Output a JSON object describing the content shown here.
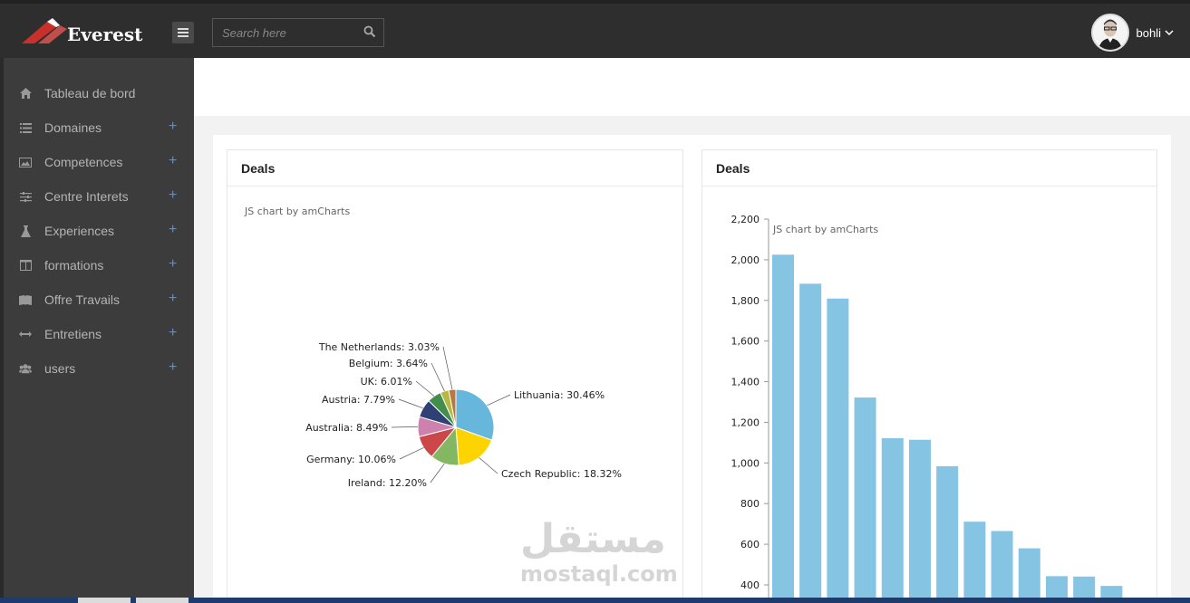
{
  "brand": {
    "name": "Everest"
  },
  "search": {
    "placeholder": "Search here"
  },
  "user": {
    "name": "bohli"
  },
  "sidebar": {
    "items": [
      {
        "label": "Tableau de bord",
        "icon": "home-icon",
        "expandable": false
      },
      {
        "label": "Domaines",
        "icon": "list-icon",
        "expandable": true
      },
      {
        "label": "Competences",
        "icon": "image-icon",
        "expandable": true
      },
      {
        "label": "Centre Interets",
        "icon": "sliders-icon",
        "expandable": true
      },
      {
        "label": "Experiences",
        "icon": "flask-icon",
        "expandable": true
      },
      {
        "label": "formations",
        "icon": "columns-icon",
        "expandable": true
      },
      {
        "label": "Offre Travails",
        "icon": "book-icon",
        "expandable": true
      },
      {
        "label": "Entretiens",
        "icon": "arrows-h-icon",
        "expandable": true
      },
      {
        "label": "users",
        "icon": "users-icon",
        "expandable": true
      }
    ]
  },
  "cards": [
    {
      "title": "Deals",
      "credit": "JS chart by amCharts"
    },
    {
      "title": "Deals",
      "credit": "JS chart by amCharts"
    }
  ],
  "watermark": {
    "arabic": "مستقل",
    "latin": "mostaql.com"
  },
  "colors": {
    "topbar": "#2e2e2e",
    "sidebar": "#3c3c3c",
    "bar": "#85c5e3",
    "plus": "#6f8cb0"
  },
  "chart_data": [
    {
      "type": "pie",
      "categories": [
        "Lithuania",
        "Czech Republic",
        "Ireland",
        "Germany",
        "Australia",
        "Austria",
        "UK",
        "Belgium",
        "The Netherlands"
      ],
      "values": [
        30.46,
        18.32,
        12.2,
        10.06,
        8.49,
        7.79,
        6.01,
        3.64,
        3.03
      ],
      "labels": [
        "Lithuania: 30.46%",
        "Czech Republic: 18.32%",
        "Ireland: 12.20%",
        "Germany: 10.06%",
        "Australia: 8.49%",
        "Austria: 7.79%",
        "UK: 6.01%",
        "Belgium: 3.64%",
        "The Netherlands: 3.03%"
      ],
      "colors": [
        "#67b7dc",
        "#fdd400",
        "#84b761",
        "#cc4748",
        "#cd82ad",
        "#2f4074",
        "#448e4d",
        "#b7b83f",
        "#b9783f"
      ],
      "title": ""
    },
    {
      "type": "bar",
      "values": [
        2025,
        1882,
        1809,
        1322,
        1122,
        1114,
        984,
        711,
        665,
        580,
        443,
        441,
        395
      ],
      "yticks": [
        "400",
        "600",
        "800",
        "1,000",
        "1,200",
        "1,400",
        "1,600",
        "1,800",
        "2,000",
        "2,200"
      ],
      "ylim": [
        400,
        2200
      ],
      "grid": false,
      "title": ""
    }
  ]
}
